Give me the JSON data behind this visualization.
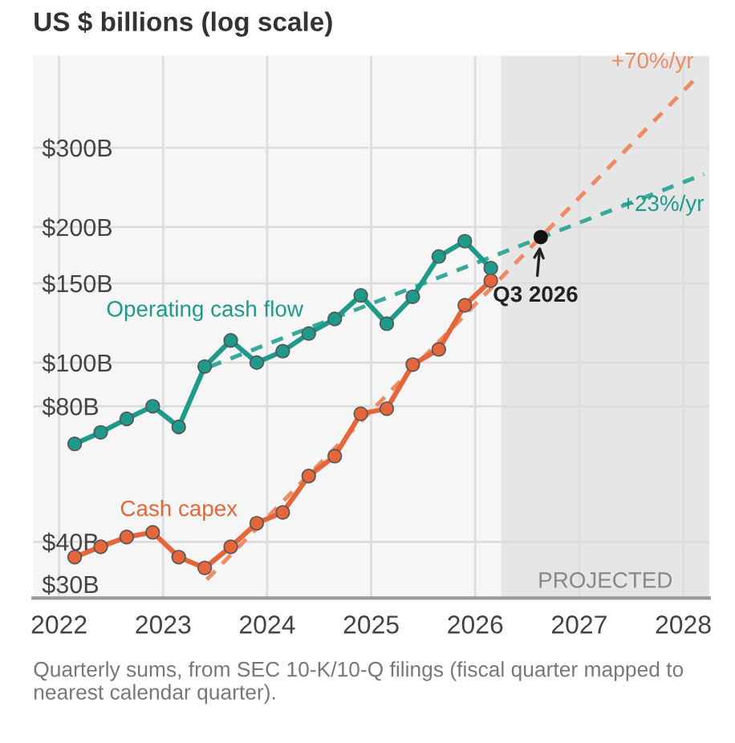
{
  "chart_data": {
    "type": "line",
    "title": "US $ billions (log scale)",
    "log": "y",
    "grid": true,
    "marker": "circle",
    "line_style": "solid",
    "xlim": [
      2021.75,
      2028.25
    ],
    "xticks": [
      2022,
      2023,
      2024,
      2025,
      2026,
      2027,
      2028
    ],
    "ylim": [
      30,
      480
    ],
    "yticks": [
      {
        "value": 30,
        "label": "$30B"
      },
      {
        "value": 40,
        "label": "$40B"
      },
      {
        "value": 80,
        "label": "$80B"
      },
      {
        "value": 100,
        "label": "$100B"
      },
      {
        "value": 150,
        "label": "$150B"
      },
      {
        "value": 200,
        "label": "$200B"
      },
      {
        "value": 300,
        "label": "$300B"
      }
    ],
    "series": [
      {
        "name": "Operating cash flow",
        "color": "#1f9a8a",
        "x": [
          2022.15,
          2022.4,
          2022.65,
          2022.9,
          2023.15,
          2023.4,
          2023.65,
          2023.9,
          2024.15,
          2024.4,
          2024.65,
          2024.9,
          2025.15,
          2025.4,
          2025.65,
          2025.9,
          2026.15
        ],
        "values": [
          66,
          70,
          75,
          80,
          72,
          98,
          112,
          100,
          106,
          116,
          125,
          141,
          122,
          140,
          172,
          186,
          162
        ]
      },
      {
        "name": "Cash capex",
        "color": "#e4663a",
        "x": [
          2022.15,
          2022.4,
          2022.65,
          2022.9,
          2023.15,
          2023.4,
          2023.65,
          2023.9,
          2024.15,
          2024.4,
          2024.65,
          2024.9,
          2025.15,
          2025.4,
          2025.65,
          2025.9,
          2026.15
        ],
        "values": [
          37,
          39,
          41,
          42,
          37,
          35,
          39,
          44,
          46.5,
          56,
          62,
          77,
          79,
          99,
          107,
          134,
          152
        ]
      },
      {
        "type": "line",
        "line_style": "dashed",
        "marker": "none",
        "color": "#3aa89a",
        "x": [
          2023.45,
          2028.2
        ],
        "values": [
          98,
          262
        ]
      },
      {
        "type": "line",
        "line_style": "dashed",
        "marker": "none",
        "color": "#ee8a64",
        "x": [
          2023.42,
          2028.1
        ],
        "values": [
          33,
          423
        ]
      },
      {
        "type": "scatter",
        "marker": "circle",
        "color": "#111111",
        "x": [
          2026.63
        ],
        "values": [
          190
        ]
      }
    ],
    "bands": [
      {
        "axis": "x",
        "from": 2026.25,
        "to": 2028.25,
        "label": "PROJECTED",
        "color": "#e6e6e6"
      }
    ],
    "annotations": [
      {
        "text": "+70%/yr",
        "x": 2028.1,
        "y": 423
      },
      {
        "text": "+23%/yr",
        "x": 2028.2,
        "y": 262
      },
      {
        "text": "Q3 2026",
        "x": 2026.63,
        "y": 190
      },
      "Quarterly sums, from SEC 10-K/10-Q filings (fiscal quarter mapped to nearest calendar quarter)."
    ]
  }
}
